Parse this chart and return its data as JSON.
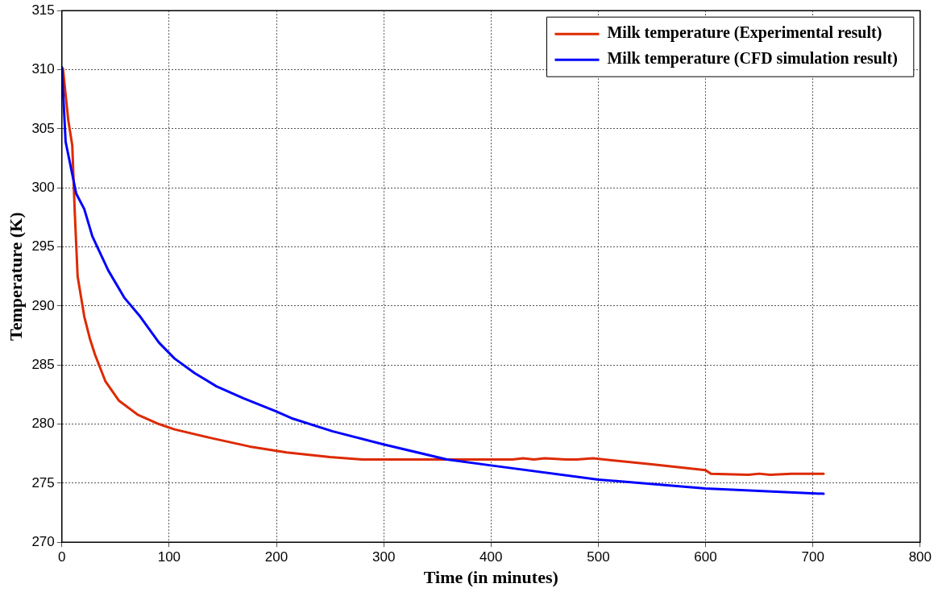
{
  "chart_data": {
    "type": "line",
    "xlabel": "Time (in minutes)",
    "ylabel": "Temperature (K)",
    "xlim": [
      0,
      800
    ],
    "xticks": [
      0,
      100,
      200,
      300,
      400,
      500,
      600,
      700,
      800
    ],
    "ylim": [
      270,
      315
    ],
    "yticks": [
      270,
      275,
      280,
      285,
      290,
      295,
      300,
      305,
      310,
      315
    ],
    "grid": true,
    "legend": "top right",
    "marker": "none",
    "line_style": "solid",
    "series": [
      {
        "name": "Milk temperature (Experimental result)",
        "color": "#dd2a00",
        "x": [
          0,
          1,
          6,
          9.7,
          12,
          14.7,
          20.9,
          25.9,
          30.8,
          40.7,
          53,
          70.6,
          90.5,
          105,
          140,
          175,
          209.5,
          250,
          280,
          400,
          420,
          430,
          440,
          450,
          470,
          480,
          495,
          550,
          600,
          605,
          640,
          650,
          660,
          680,
          700,
          710
        ],
        "values": [
          310,
          310.1,
          305.7,
          303.6,
          298,
          292.5,
          289.1,
          287.3,
          285.9,
          283.6,
          282,
          280.8,
          280,
          279.55,
          278.8,
          278.1,
          277.6,
          277.2,
          277,
          277,
          277,
          277.1,
          277,
          277.1,
          277,
          277,
          277.1,
          276.6,
          276.1,
          275.8,
          275.7,
          275.8,
          275.7,
          275.8,
          275.8,
          275.8
        ]
      },
      {
        "name": "Milk temperature (CFD simulation result)",
        "color": "#0000ff",
        "x": [
          0,
          3.5,
          13.4,
          20.9,
          28.4,
          43.3,
          58.2,
          73,
          90.5,
          105,
          124,
          144,
          169,
          199,
          214,
          252,
          299,
          359,
          400,
          500,
          600,
          710
        ],
        "values": [
          310.2,
          303.9,
          299.5,
          298.2,
          295.9,
          293,
          290.7,
          289.1,
          286.9,
          285.55,
          284.3,
          283.2,
          282.2,
          281.1,
          280.5,
          279.4,
          278.3,
          277,
          276.5,
          275.3,
          274.55,
          274.1
        ]
      }
    ]
  }
}
